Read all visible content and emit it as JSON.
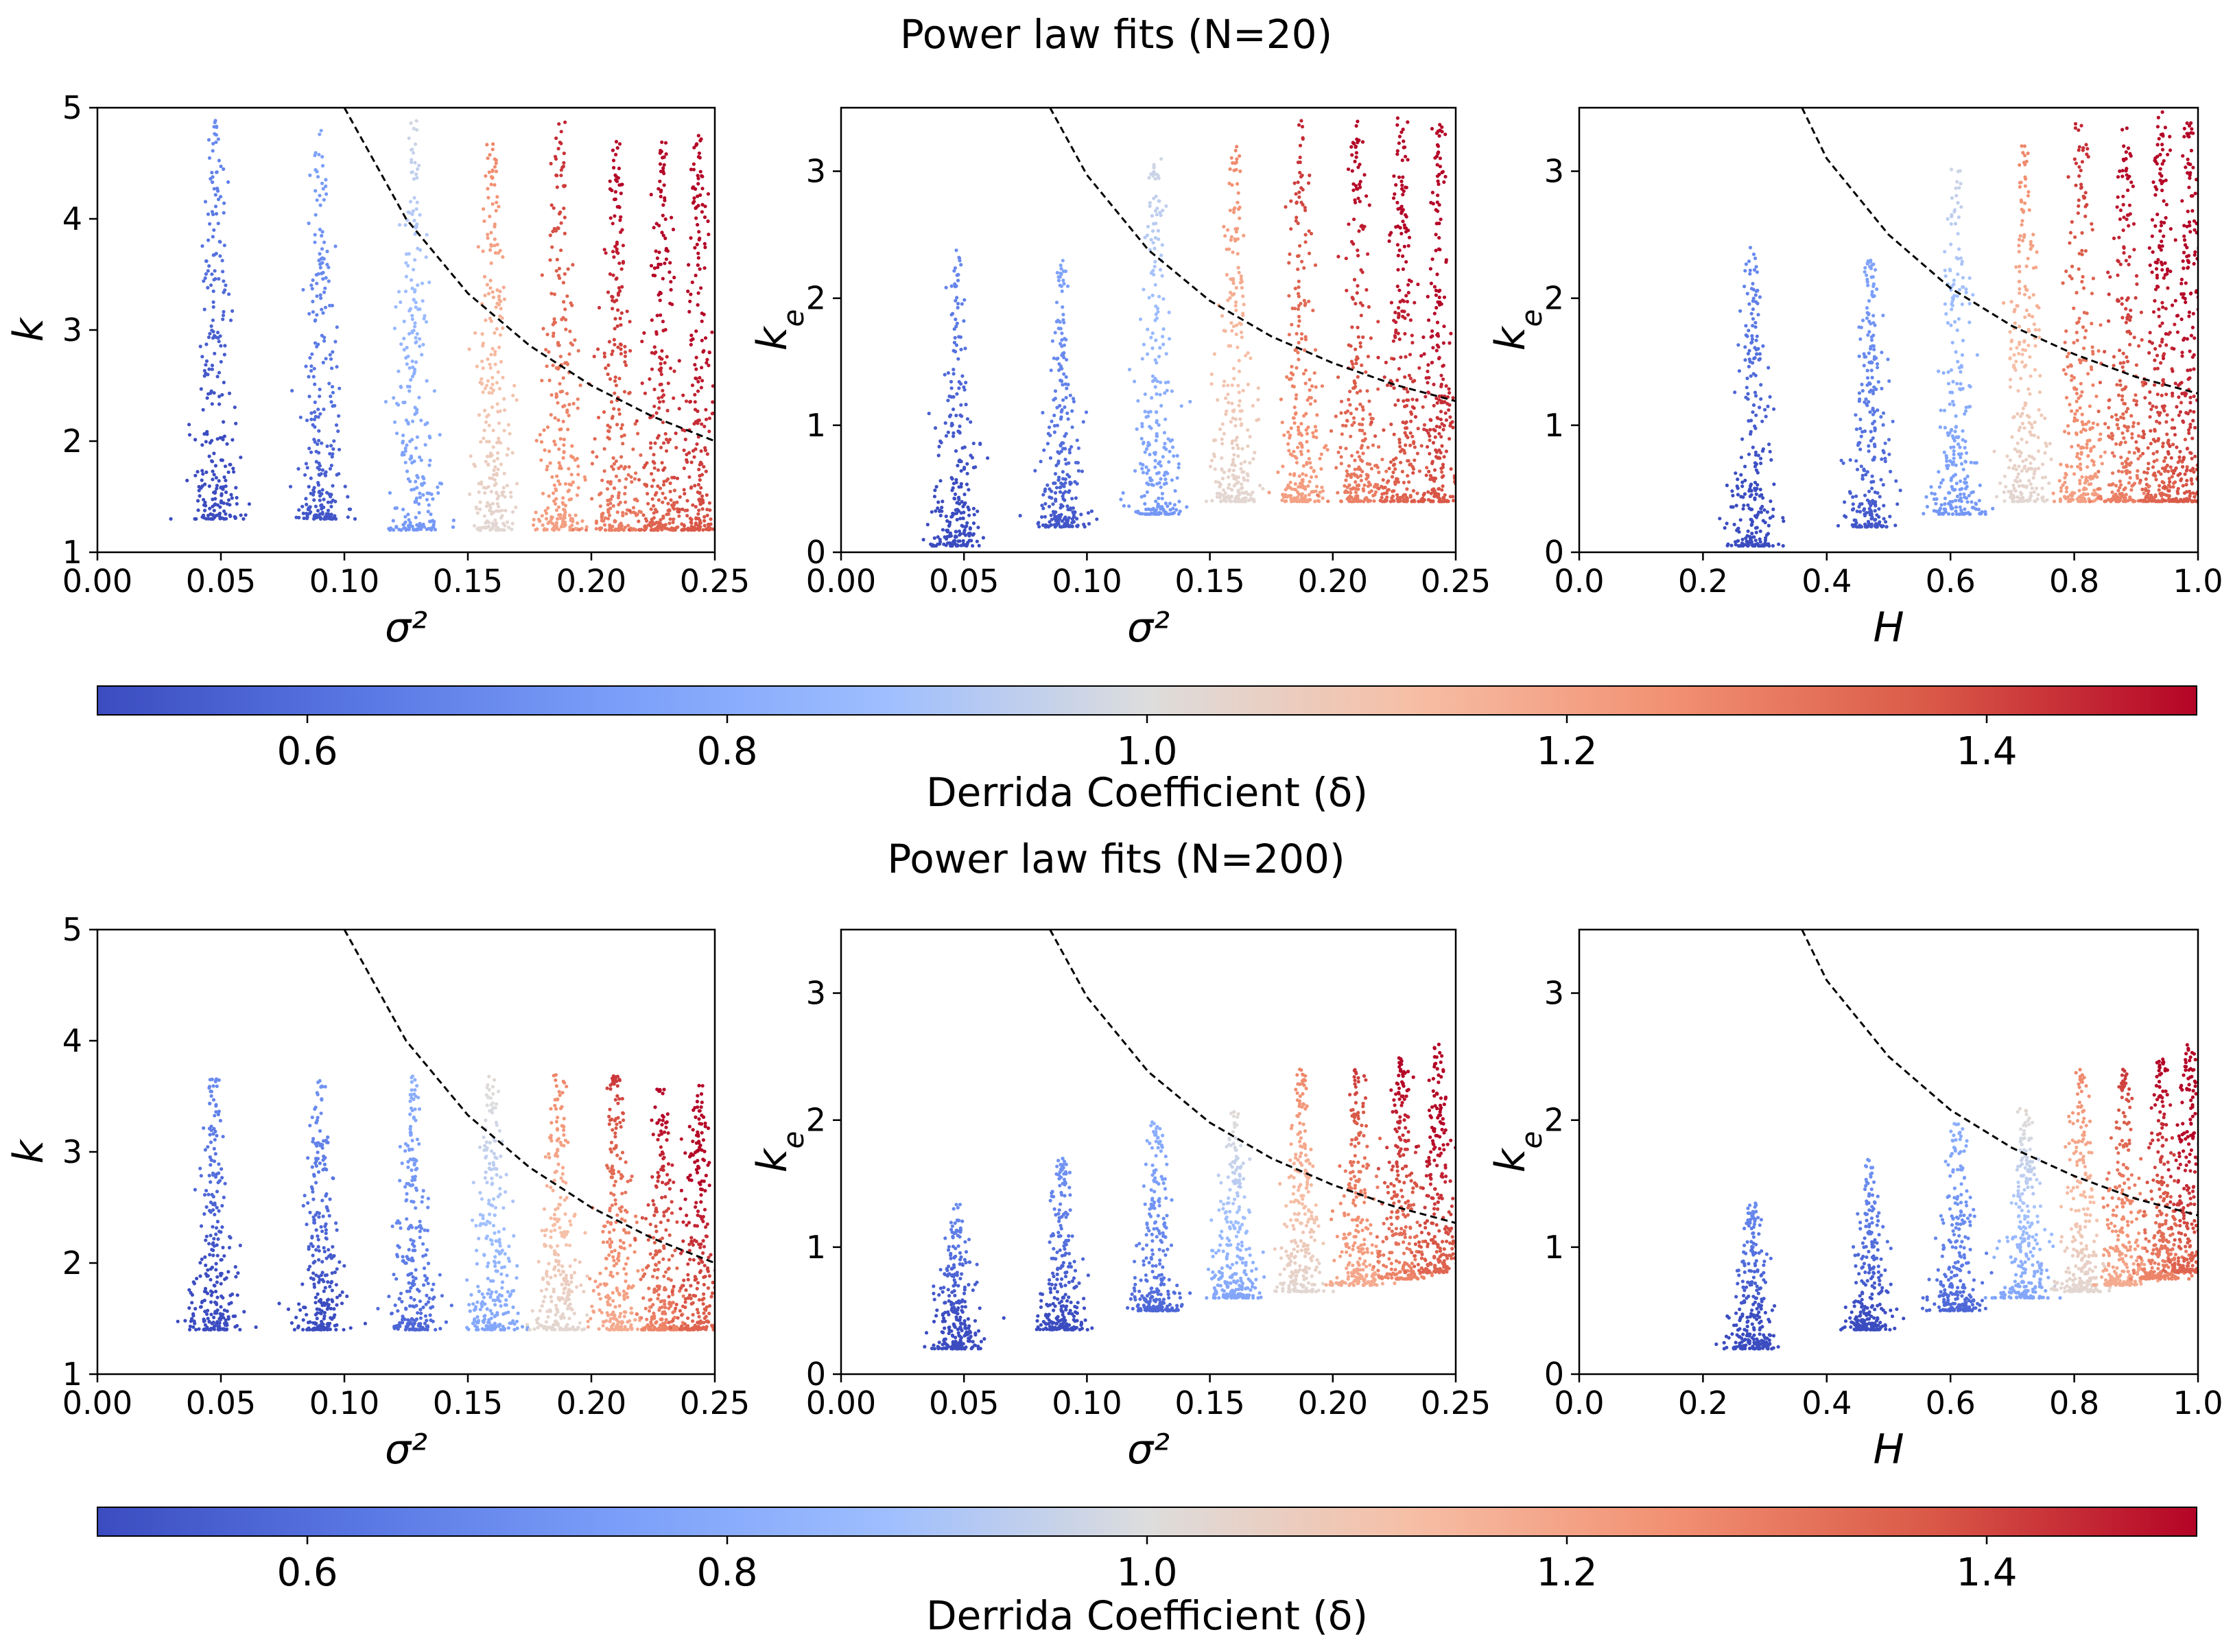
{
  "figure": {
    "suptitles": [
      "Power law fits (N=20)",
      "Power law fits (N=200)"
    ],
    "colors": {
      "cmap_low": "#3b4cc0",
      "cmap_mid": "#dddddd",
      "cmap_high": "#b40426",
      "guide_line": "#000000"
    }
  },
  "colorbars": [
    {
      "label": "Derrida Coefficient (δ)",
      "range": [
        0.5,
        1.5
      ],
      "ticks": [
        0.6,
        0.8,
        1.0,
        1.2,
        1.4
      ],
      "tick_labels": [
        "0.6",
        "0.8",
        "1.0",
        "1.2",
        "1.4"
      ],
      "cmap": "coolwarm"
    },
    {
      "label": "Derrida Coefficient (δ)",
      "range": [
        0.5,
        1.5
      ],
      "ticks": [
        0.6,
        0.8,
        1.0,
        1.2,
        1.4
      ],
      "tick_labels": [
        "0.6",
        "0.8",
        "1.0",
        "1.2",
        "1.4"
      ],
      "cmap": "coolwarm"
    }
  ],
  "chart_data": [
    {
      "type": "scatter",
      "group": "Power law fits (N=20)",
      "xlabel": "σ²",
      "ylabel": "k",
      "xlim": [
        0,
        0.25
      ],
      "ylim": [
        1,
        5
      ],
      "xticks": [
        0,
        0.05,
        0.1,
        0.15,
        0.2,
        0.25
      ],
      "xtick_labels": [
        "0.00",
        "0.05",
        "0.10",
        "0.15",
        "0.20",
        "0.25"
      ],
      "yticks": [
        1,
        2,
        3,
        4,
        5
      ],
      "ytick_labels": [
        "1",
        "2",
        "3",
        "4",
        "5"
      ],
      "guide_curve": {
        "style": "dashed",
        "color": "#000000",
        "points": [
          [
            0.1,
            5.0
          ],
          [
            0.125,
            4.0
          ],
          [
            0.15,
            3.33
          ],
          [
            0.175,
            2.86
          ],
          [
            0.2,
            2.5
          ],
          [
            0.225,
            2.22
          ],
          [
            0.25,
            2.0
          ]
        ]
      },
      "clusters": [
        {
          "x": 0.048,
          "y_min": 1.3,
          "y_max": 4.9,
          "delta": 0.52
        },
        {
          "x": 0.09,
          "y_min": 1.3,
          "y_max": 4.8,
          "delta": 0.6
        },
        {
          "x": 0.128,
          "y_min": 1.2,
          "y_max": 4.9,
          "delta": 0.8
        },
        {
          "x": 0.16,
          "y_min": 1.2,
          "y_max": 4.7,
          "delta": 1.1
        },
        {
          "x": 0.187,
          "y_min": 1.2,
          "y_max": 4.9,
          "delta": 1.28
        },
        {
          "x": 0.21,
          "y_min": 1.2,
          "y_max": 4.7,
          "delta": 1.36
        },
        {
          "x": 0.228,
          "y_min": 1.2,
          "y_max": 4.7,
          "delta": 1.42
        },
        {
          "x": 0.243,
          "y_min": 1.2,
          "y_max": 4.8,
          "delta": 1.45
        }
      ]
    },
    {
      "type": "scatter",
      "group": "Power law fits (N=20)",
      "xlabel": "σ²",
      "ylabel": "k_e",
      "xlim": [
        0,
        0.25
      ],
      "ylim": [
        0,
        3.5
      ],
      "xticks": [
        0,
        0.05,
        0.1,
        0.15,
        0.2,
        0.25
      ],
      "xtick_labels": [
        "0.00",
        "0.05",
        "0.10",
        "0.15",
        "0.20",
        "0.25"
      ],
      "yticks": [
        0,
        1,
        2,
        3
      ],
      "ytick_labels": [
        "0",
        "1",
        "2",
        "3"
      ],
      "guide_curve": {
        "style": "dashed",
        "color": "#000000",
        "points": [
          [
            0.085,
            3.5
          ],
          [
            0.1,
            2.97
          ],
          [
            0.125,
            2.38
          ],
          [
            0.15,
            1.98
          ],
          [
            0.175,
            1.7
          ],
          [
            0.2,
            1.49
          ],
          [
            0.225,
            1.32
          ],
          [
            0.25,
            1.19
          ]
        ]
      },
      "clusters": [
        {
          "x": 0.047,
          "y_min": 0.05,
          "y_max": 2.4,
          "delta": 0.52
        },
        {
          "x": 0.09,
          "y_min": 0.2,
          "y_max": 2.3,
          "delta": 0.6
        },
        {
          "x": 0.128,
          "y_min": 0.3,
          "y_max": 3.1,
          "delta": 0.8
        },
        {
          "x": 0.16,
          "y_min": 0.4,
          "y_max": 3.2,
          "delta": 1.1
        },
        {
          "x": 0.187,
          "y_min": 0.4,
          "y_max": 3.4,
          "delta": 1.28
        },
        {
          "x": 0.21,
          "y_min": 0.4,
          "y_max": 3.4,
          "delta": 1.36
        },
        {
          "x": 0.228,
          "y_min": 0.4,
          "y_max": 3.5,
          "delta": 1.42
        },
        {
          "x": 0.243,
          "y_min": 0.4,
          "y_max": 3.4,
          "delta": 1.45
        }
      ]
    },
    {
      "type": "scatter",
      "group": "Power law fits (N=20)",
      "xlabel": "H",
      "ylabel": "k_e",
      "xlim": [
        0,
        1.0
      ],
      "ylim": [
        0,
        3.5
      ],
      "xticks": [
        0,
        0.2,
        0.4,
        0.6,
        0.8,
        1.0
      ],
      "xtick_labels": [
        "0.0",
        "0.2",
        "0.4",
        "0.6",
        "0.8",
        "1.0"
      ],
      "yticks": [
        0,
        1,
        2,
        3
      ],
      "ytick_labels": [
        "0",
        "1",
        "2",
        "3"
      ],
      "guide_curve": {
        "style": "dashed",
        "color": "#000000",
        "points": [
          [
            0.36,
            3.5
          ],
          [
            0.4,
            3.1
          ],
          [
            0.5,
            2.5
          ],
          [
            0.6,
            2.08
          ],
          [
            0.7,
            1.78
          ],
          [
            0.8,
            1.56
          ],
          [
            0.9,
            1.38
          ],
          [
            1.0,
            1.25
          ]
        ]
      },
      "clusters": [
        {
          "x": 0.28,
          "y_min": 0.05,
          "y_max": 2.4,
          "delta": 0.52
        },
        {
          "x": 0.47,
          "y_min": 0.2,
          "y_max": 2.3,
          "delta": 0.6
        },
        {
          "x": 0.61,
          "y_min": 0.3,
          "y_max": 3.1,
          "delta": 0.8
        },
        {
          "x": 0.72,
          "y_min": 0.4,
          "y_max": 3.2,
          "delta": 1.1
        },
        {
          "x": 0.81,
          "y_min": 0.4,
          "y_max": 3.4,
          "delta": 1.28
        },
        {
          "x": 0.88,
          "y_min": 0.4,
          "y_max": 3.4,
          "delta": 1.36
        },
        {
          "x": 0.94,
          "y_min": 0.4,
          "y_max": 3.5,
          "delta": 1.42
        },
        {
          "x": 0.985,
          "y_min": 0.4,
          "y_max": 3.4,
          "delta": 1.45
        }
      ]
    },
    {
      "type": "scatter",
      "group": "Power law fits (N=200)",
      "xlabel": "σ²",
      "ylabel": "k",
      "xlim": [
        0,
        0.25
      ],
      "ylim": [
        1,
        5
      ],
      "xticks": [
        0,
        0.05,
        0.1,
        0.15,
        0.2,
        0.25
      ],
      "xtick_labels": [
        "0.00",
        "0.05",
        "0.10",
        "0.15",
        "0.20",
        "0.25"
      ],
      "yticks": [
        1,
        2,
        3,
        4,
        5
      ],
      "ytick_labels": [
        "1",
        "2",
        "3",
        "4",
        "5"
      ],
      "guide_curve": {
        "style": "dashed",
        "color": "#000000",
        "points": [
          [
            0.1,
            5.0
          ],
          [
            0.125,
            4.0
          ],
          [
            0.15,
            3.33
          ],
          [
            0.175,
            2.86
          ],
          [
            0.2,
            2.5
          ],
          [
            0.225,
            2.22
          ],
          [
            0.25,
            2.0
          ]
        ]
      },
      "clusters": [
        {
          "x": 0.047,
          "y_min": 1.4,
          "y_max": 3.7,
          "delta": 0.52
        },
        {
          "x": 0.09,
          "y_min": 1.4,
          "y_max": 3.7,
          "delta": 0.55
        },
        {
          "x": 0.128,
          "y_min": 1.4,
          "y_max": 3.7,
          "delta": 0.65
        },
        {
          "x": 0.16,
          "y_min": 1.4,
          "y_max": 3.7,
          "delta": 0.85
        },
        {
          "x": 0.187,
          "y_min": 1.4,
          "y_max": 3.7,
          "delta": 1.1
        },
        {
          "x": 0.21,
          "y_min": 1.4,
          "y_max": 3.7,
          "delta": 1.25
        },
        {
          "x": 0.228,
          "y_min": 1.4,
          "y_max": 3.6,
          "delta": 1.35
        },
        {
          "x": 0.243,
          "y_min": 1.4,
          "y_max": 3.6,
          "delta": 1.42
        }
      ]
    },
    {
      "type": "scatter",
      "group": "Power law fits (N=200)",
      "xlabel": "σ²",
      "ylabel": "k_e",
      "xlim": [
        0,
        0.25
      ],
      "ylim": [
        0,
        3.5
      ],
      "xticks": [
        0,
        0.05,
        0.1,
        0.15,
        0.2,
        0.25
      ],
      "xtick_labels": [
        "0.00",
        "0.05",
        "0.10",
        "0.15",
        "0.20",
        "0.25"
      ],
      "yticks": [
        0,
        1,
        2,
        3
      ],
      "ytick_labels": [
        "0",
        "1",
        "2",
        "3"
      ],
      "guide_curve": {
        "style": "dashed",
        "color": "#000000",
        "points": [
          [
            0.085,
            3.5
          ],
          [
            0.1,
            2.97
          ],
          [
            0.125,
            2.38
          ],
          [
            0.15,
            1.98
          ],
          [
            0.175,
            1.7
          ],
          [
            0.2,
            1.49
          ],
          [
            0.225,
            1.32
          ],
          [
            0.25,
            1.19
          ]
        ]
      },
      "clusters": [
        {
          "x": 0.047,
          "y_min": 0.2,
          "y_max": 1.35,
          "delta": 0.52
        },
        {
          "x": 0.09,
          "y_min": 0.35,
          "y_max": 1.7,
          "delta": 0.55
        },
        {
          "x": 0.128,
          "y_min": 0.5,
          "y_max": 2.0,
          "delta": 0.65
        },
        {
          "x": 0.16,
          "y_min": 0.6,
          "y_max": 2.1,
          "delta": 0.85
        },
        {
          "x": 0.187,
          "y_min": 0.65,
          "y_max": 2.4,
          "delta": 1.1
        },
        {
          "x": 0.21,
          "y_min": 0.7,
          "y_max": 2.4,
          "delta": 1.25
        },
        {
          "x": 0.228,
          "y_min": 0.75,
          "y_max": 2.5,
          "delta": 1.35
        },
        {
          "x": 0.243,
          "y_min": 0.8,
          "y_max": 2.6,
          "delta": 1.42
        }
      ]
    },
    {
      "type": "scatter",
      "group": "Power law fits (N=200)",
      "xlabel": "H",
      "ylabel": "k_e",
      "xlim": [
        0,
        1.0
      ],
      "ylim": [
        0,
        3.5
      ],
      "xticks": [
        0,
        0.2,
        0.4,
        0.6,
        0.8,
        1.0
      ],
      "xtick_labels": [
        "0.0",
        "0.2",
        "0.4",
        "0.6",
        "0.8",
        "1.0"
      ],
      "yticks": [
        0,
        1,
        2,
        3
      ],
      "ytick_labels": [
        "0",
        "1",
        "2",
        "3"
      ],
      "guide_curve": {
        "style": "dashed",
        "color": "#000000",
        "points": [
          [
            0.36,
            3.5
          ],
          [
            0.4,
            3.1
          ],
          [
            0.5,
            2.5
          ],
          [
            0.6,
            2.08
          ],
          [
            0.7,
            1.78
          ],
          [
            0.8,
            1.56
          ],
          [
            0.9,
            1.38
          ],
          [
            1.0,
            1.25
          ]
        ]
      },
      "clusters": [
        {
          "x": 0.28,
          "y_min": 0.2,
          "y_max": 1.35,
          "delta": 0.52
        },
        {
          "x": 0.47,
          "y_min": 0.35,
          "y_max": 1.7,
          "delta": 0.55
        },
        {
          "x": 0.61,
          "y_min": 0.5,
          "y_max": 2.0,
          "delta": 0.65
        },
        {
          "x": 0.72,
          "y_min": 0.6,
          "y_max": 2.1,
          "delta": 0.85
        },
        {
          "x": 0.81,
          "y_min": 0.65,
          "y_max": 2.4,
          "delta": 1.1
        },
        {
          "x": 0.88,
          "y_min": 0.7,
          "y_max": 2.4,
          "delta": 1.25
        },
        {
          "x": 0.94,
          "y_min": 0.75,
          "y_max": 2.5,
          "delta": 1.35
        },
        {
          "x": 0.985,
          "y_min": 0.8,
          "y_max": 2.6,
          "delta": 1.42
        }
      ]
    }
  ]
}
